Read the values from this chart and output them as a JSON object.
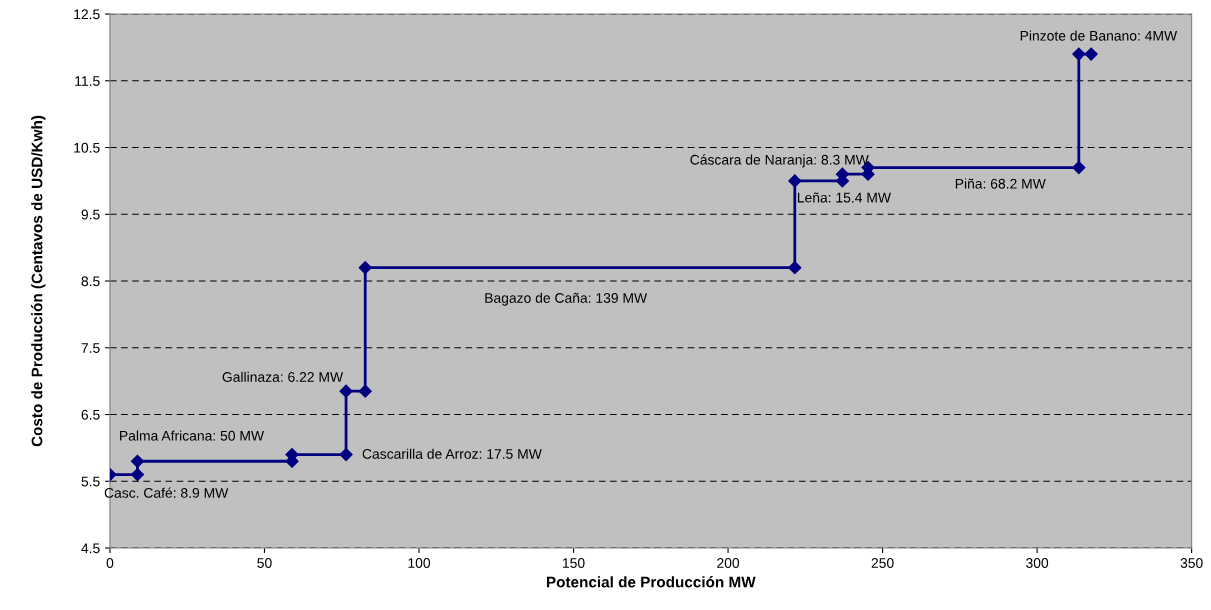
{
  "chart_data": {
    "type": "line",
    "xlabel": "Potencial de Producción MW",
    "ylabel": "Costo de Producción (Centavos de USD/Kwh)",
    "series": [
      {
        "color": "#000080",
        "x": [
          0,
          8.9,
          8.9,
          58.9,
          58.9,
          76.4,
          76.4,
          82.6,
          82.6,
          221.6,
          221.6,
          237.0,
          237.0,
          245.3,
          245.3,
          313.5,
          313.5,
          317.5
        ],
        "values": [
          5.6,
          5.6,
          5.8,
          5.8,
          5.9,
          5.9,
          6.85,
          6.85,
          8.7,
          8.7,
          10.0,
          10.0,
          10.1,
          10.1,
          10.2,
          10.2,
          11.9,
          11.9
        ]
      }
    ],
    "xlim": [
      0,
      350
    ],
    "xticks": [
      0,
      50,
      100,
      150,
      200,
      250,
      300,
      350
    ],
    "ylim": [
      4.5,
      12.5
    ],
    "yticks": [
      4.5,
      5.5,
      6.5,
      7.5,
      8.5,
      9.5,
      10.5,
      11.5,
      12.5
    ],
    "grid": "y",
    "marker": "diamond",
    "line_style": "solid",
    "annotations": [
      "Pinzote de Banano: 4MW",
      "Cáscara de Naranja: 8.3 MW",
      "Leña: 15.4 MW",
      "Piña: 68.2 MW",
      "Bagazo de Caña: 139 MW",
      "Gallinaza: 6.22 MW",
      "Palma Africana: 50 MW",
      "Cascarilla de Arroz: 17.5 MW",
      "Casc. Café: 8.9 MW"
    ]
  }
}
